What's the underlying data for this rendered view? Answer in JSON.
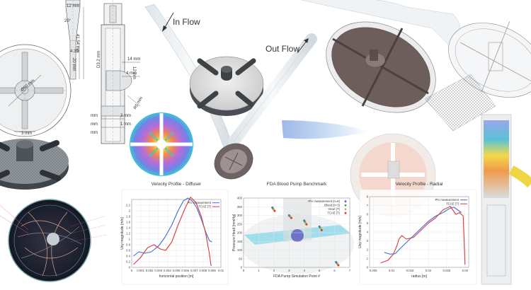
{
  "drawing": {
    "dims_left": [
      "12 mm",
      "20°",
      "4.39",
      "41.54 mm",
      "20 mm",
      "Ø60 mm",
      "3 mm"
    ],
    "dims_right": [
      "14 mm",
      "4 mm",
      "12 mm",
      "D3.2 mm",
      "R5 mm",
      "mm",
      "3 mm",
      "mm",
      "1 mm",
      "mm"
    ]
  },
  "flow_labels": {
    "in": "In Flow",
    "out": "Out Flow"
  },
  "chart_data": [
    {
      "type": "line",
      "title": "Velocity Profile - Diffuser",
      "xlabel": "horizontal position [m]",
      "ylabel": "Uxy magnitude [m/s]",
      "xlim": [
        0,
        0.01
      ],
      "ylim": [
        0,
        2.4
      ],
      "xticks": [
        "0",
        "0.001",
        "0.002",
        "0.003",
        "0.004",
        "0.005",
        "0.006",
        "0.007",
        "0.008",
        "0.009",
        "0.01"
      ],
      "yticks": [
        "0",
        "0.2",
        "0.4",
        "0.6",
        "0.8",
        "1",
        "1.2",
        "1.4",
        "1.6",
        "1.8",
        "2",
        "2.2"
      ],
      "legend": "top-right",
      "series": [
        {
          "name": "PIV measurement",
          "color": "#3a6fd8",
          "x": [
            0.0002,
            0.0008,
            0.0015,
            0.0022,
            0.003,
            0.0037,
            0.0045,
            0.0052,
            0.0058,
            0.0063,
            0.0068,
            0.0073,
            0.0078,
            0.0083,
            0.0087,
            0.009
          ],
          "y": [
            0.4,
            0.55,
            0.5,
            0.55,
            0.75,
            1.05,
            1.5,
            2.0,
            2.35,
            2.45,
            2.35,
            2.1,
            1.7,
            1.25,
            0.95,
            0.9
          ]
        },
        {
          "name": "TCAE (T)",
          "color": "#d83a3a",
          "x": [
            0.0002,
            0.001,
            0.0018,
            0.0025,
            0.0032,
            0.0038,
            0.0045,
            0.0052,
            0.006,
            0.0066,
            0.0072,
            0.0078,
            0.0083,
            0.0087,
            0.0089
          ],
          "y": [
            0.1,
            0.35,
            0.7,
            0.8,
            0.65,
            0.6,
            0.9,
            1.5,
            2.1,
            2.48,
            2.3,
            1.8,
            1.2,
            0.5,
            0.05
          ]
        }
      ]
    },
    {
      "type": "scatter",
      "title": "FDA Blood Pump Benchmark",
      "xlabel": "FDA Pump Simulation Point #",
      "ylabel": "Pressure Head [mmHg]",
      "xlim": [
        0,
        7
      ],
      "ylim": [
        0,
        400
      ],
      "xticks": [
        "0",
        "1",
        "2",
        "3",
        "4",
        "5",
        "6",
        "7"
      ],
      "yticks": [
        "0",
        "50",
        "100",
        "150",
        "200",
        "250",
        "300",
        "350",
        "400"
      ],
      "legend": "top-right",
      "series": [
        {
          "name": "PIV measurement (n=8)",
          "color": "#3a6fd8",
          "x": [
            1.9,
            3.0,
            4.0,
            5.0,
            6.1
          ],
          "y": [
            345,
            300,
            270,
            235,
            30
          ]
        },
        {
          "name": "Blood (n=3)",
          "color": "#3aa655",
          "x": [
            1.95,
            3.05,
            4.05,
            5.05,
            6.15
          ],
          "y": [
            338,
            295,
            262,
            228,
            24
          ]
        },
        {
          "name": "Heuri (T)",
          "color": "#e8a53a",
          "x": [
            2.0,
            3.1,
            4.1,
            5.1,
            6.2
          ],
          "y": [
            332,
            290,
            255,
            222,
            18
          ]
        },
        {
          "name": "TCAE (T)",
          "color": "#d83a3a",
          "x": [
            2.05,
            3.15,
            4.15,
            5.15,
            6.25
          ],
          "y": [
            326,
            285,
            248,
            215,
            12
          ]
        }
      ]
    },
    {
      "type": "line",
      "title": "Velocity Profile - Radial",
      "xlabel": "radius [m]",
      "ylabel": "Uxy magnitude [m/s]",
      "xlim": [
        0.004,
        0.031
      ],
      "ylim": [
        0,
        8
      ],
      "xticks": [
        "0.005",
        "0.01",
        "0.015",
        "0.02",
        "0.025",
        "0.03"
      ],
      "yticks": [
        "0",
        "1",
        "2",
        "3",
        "4",
        "5",
        "6",
        "7",
        "8"
      ],
      "legend": "top-right",
      "series": [
        {
          "name": "PIV measurement",
          "color": "#3a6fd8",
          "x": [
            0.008,
            0.0095,
            0.011,
            0.0125,
            0.014,
            0.016,
            0.018,
            0.02,
            0.022,
            0.024,
            0.026,
            0.027,
            0.028,
            0.029
          ],
          "y": [
            1.7,
            1.5,
            1.55,
            2.2,
            2.8,
            3.6,
            4.4,
            5.2,
            5.8,
            6.2,
            6.7,
            6.8,
            6.5,
            6.2
          ]
        },
        {
          "name": "TCAE (T)",
          "color": "#d83a3a",
          "x": [
            0.007,
            0.009,
            0.0105,
            0.0115,
            0.012,
            0.0128,
            0.014,
            0.016,
            0.018,
            0.02,
            0.022,
            0.024,
            0.026,
            0.0275,
            0.0285,
            0.0295,
            0.03
          ],
          "y": [
            0.5,
            0.8,
            1.5,
            2.5,
            3.2,
            3.6,
            3.2,
            3.4,
            4.2,
            5.0,
            5.6,
            6.5,
            6.9,
            6.0,
            6.2,
            5.8,
            0.3
          ]
        }
      ]
    }
  ]
}
